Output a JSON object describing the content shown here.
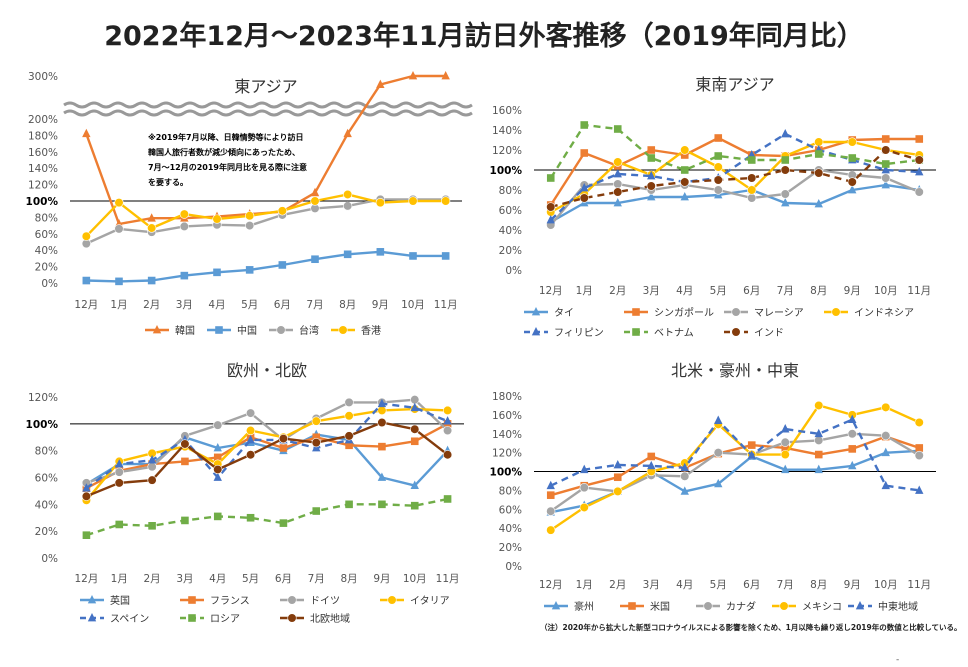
{
  "title": "2022年12月～2023年11月訪日外客推移（2019年同月比）",
  "footnote": "（注）2020年から拡大した新型コロナウイルスによる影響を除くため、1月以降も繰り返し2019年の数値と比較している。",
  "page_mark": "-",
  "chart_data": [
    {
      "id": "east-asia",
      "type": "line",
      "title": "東アジア",
      "categories": [
        "12月",
        "1月",
        "2月",
        "3月",
        "4月",
        "5月",
        "6月",
        "7月",
        "8月",
        "9月",
        "10月",
        "11月"
      ],
      "y_ticks": [
        "0%",
        "20%",
        "40%",
        "60%",
        "80%",
        "100%",
        "120%",
        "140%",
        "160%",
        "180%",
        "200%",
        "300%"
      ],
      "axis_break": "200%-300%",
      "note": [
        "※2019年7月以降、日韓情勢等により訪日",
        "韓国人旅行者数が減少傾向にあったため、",
        "7月～12月の2019年同月比を見る際に注意",
        "を要する。"
      ],
      "series": [
        {
          "name": "韓国",
          "color": "#ED7D31",
          "dash": false,
          "marker": "triangle",
          "values": [
            182,
            72,
            79,
            79,
            81,
            84,
            87,
            110,
            182,
            280,
            305,
            305
          ]
        },
        {
          "name": "中国",
          "color": "#5B9BD5",
          "dash": false,
          "marker": "square",
          "values": [
            3,
            2,
            3,
            9,
            13,
            16,
            22,
            29,
            35,
            38,
            33,
            33
          ]
        },
        {
          "name": "台湾",
          "color": "#A5A5A5",
          "dash": false,
          "marker": "circle",
          "values": [
            48,
            66,
            62,
            69,
            71,
            70,
            83,
            91,
            94,
            102,
            102,
            102
          ]
        },
        {
          "name": "香港",
          "color": "#FFC000",
          "dash": false,
          "marker": "circle",
          "values": [
            57,
            98,
            67,
            84,
            78,
            82,
            88,
            100,
            108,
            98,
            100,
            100
          ]
        }
      ]
    },
    {
      "id": "southeast-asia",
      "type": "line",
      "title": "東南アジア",
      "categories": [
        "12月",
        "1月",
        "2月",
        "3月",
        "4月",
        "5月",
        "6月",
        "7月",
        "8月",
        "9月",
        "10月",
        "11月"
      ],
      "y_ticks": [
        "0%",
        "20%",
        "40%",
        "60%",
        "80%",
        "100%",
        "120%",
        "140%",
        "160%"
      ],
      "ylim": [
        0,
        160
      ],
      "series": [
        {
          "name": "タイ",
          "color": "#5B9BD5",
          "dash": false,
          "marker": "triangle",
          "values": [
            48,
            67,
            67,
            73,
            73,
            75,
            80,
            67,
            66,
            80,
            85,
            80
          ]
        },
        {
          "name": "シンガポール",
          "color": "#ED7D31",
          "dash": false,
          "marker": "square",
          "values": [
            65,
            117,
            104,
            120,
            115,
            132,
            115,
            114,
            120,
            130,
            131,
            131
          ]
        },
        {
          "name": "マレーシア",
          "color": "#A5A5A5",
          "dash": false,
          "marker": "circle",
          "values": [
            45,
            85,
            86,
            80,
            85,
            80,
            72,
            76,
            100,
            95,
            92,
            78
          ]
        },
        {
          "name": "インドネシア",
          "color": "#FFC000",
          "dash": false,
          "marker": "circle",
          "values": [
            58,
            76,
            108,
            95,
            120,
            103,
            80,
            114,
            128,
            128,
            120,
            115
          ]
        },
        {
          "name": "フィリピン",
          "color": "#4472C4",
          "dash": true,
          "marker": "triangle",
          "values": [
            50,
            82,
            96,
            94,
            88,
            92,
            115,
            136,
            120,
            110,
            100,
            98
          ]
        },
        {
          "name": "ベトナム",
          "color": "#70AD47",
          "dash": true,
          "marker": "square",
          "values": [
            92,
            145,
            141,
            112,
            100,
            114,
            110,
            110,
            116,
            112,
            106,
            110
          ]
        },
        {
          "name": "インド",
          "color": "#843C0C",
          "dash": true,
          "marker": "circle",
          "values": [
            63,
            72,
            78,
            84,
            88,
            90,
            92,
            100,
            97,
            88,
            120,
            110
          ]
        }
      ]
    },
    {
      "id": "europe",
      "type": "line",
      "title": "欧州・北欧",
      "categories": [
        "12月",
        "1月",
        "2月",
        "3月",
        "4月",
        "5月",
        "6月",
        "7月",
        "8月",
        "9月",
        "10月",
        "11月"
      ],
      "y_ticks": [
        "0%",
        "20%",
        "40%",
        "60%",
        "80%",
        "100%",
        "120%"
      ],
      "ylim": [
        0,
        120
      ],
      "series": [
        {
          "name": "英国",
          "color": "#5B9BD5",
          "dash": false,
          "marker": "triangle",
          "values": [
            55,
            70,
            70,
            90,
            82,
            86,
            80,
            92,
            88,
            60,
            54,
            80
          ]
        },
        {
          "name": "フランス",
          "color": "#ED7D31",
          "dash": false,
          "marker": "square",
          "values": [
            52,
            65,
            70,
            72,
            75,
            90,
            82,
            90,
            84,
            83,
            87,
            100
          ]
        },
        {
          "name": "ドイツ",
          "color": "#A5A5A5",
          "dash": false,
          "marker": "circle",
          "values": [
            56,
            64,
            68,
            91,
            99,
            108,
            88,
            104,
            116,
            116,
            118,
            95
          ]
        },
        {
          "name": "イタリア",
          "color": "#FFC000",
          "dash": false,
          "marker": "circle",
          "values": [
            43,
            72,
            78,
            83,
            70,
            95,
            90,
            102,
            106,
            110,
            111,
            110
          ]
        },
        {
          "name": "スペイン",
          "color": "#4472C4",
          "dash": true,
          "marker": "triangle",
          "values": [
            52,
            70,
            73,
            88,
            60,
            88,
            88,
            82,
            88,
            115,
            112,
            102
          ]
        },
        {
          "name": "ロシア",
          "color": "#70AD47",
          "dash": true,
          "marker": "square",
          "values": [
            17,
            25,
            24,
            28,
            31,
            30,
            26,
            35,
            40,
            40,
            39,
            44
          ]
        },
        {
          "name": "北欧地域",
          "color": "#843C0C",
          "dash": false,
          "marker": "circle",
          "values": [
            46,
            56,
            58,
            85,
            66,
            77,
            89,
            86,
            91,
            101,
            96,
            77
          ]
        }
      ]
    },
    {
      "id": "americas-oceania-middleeast",
      "type": "line",
      "title": "北米・豪州・中東",
      "categories": [
        "12月",
        "1月",
        "2月",
        "3月",
        "4月",
        "5月",
        "6月",
        "7月",
        "8月",
        "9月",
        "10月",
        "11月"
      ],
      "y_ticks": [
        "0%",
        "20%",
        "40%",
        "60%",
        "80%",
        "100%",
        "120%",
        "140%",
        "160%",
        "180%"
      ],
      "ylim": [
        0,
        180
      ],
      "series": [
        {
          "name": "豪州",
          "color": "#5B9BD5",
          "dash": false,
          "marker": "triangle",
          "values": [
            57,
            64,
            79,
            100,
            79,
            87,
            116,
            102,
            102,
            106,
            120,
            122
          ]
        },
        {
          "name": "米国",
          "color": "#ED7D31",
          "dash": false,
          "marker": "square",
          "values": [
            75,
            85,
            94,
            116,
            104,
            119,
            128,
            125,
            118,
            124,
            137,
            125
          ]
        },
        {
          "name": "カナダ",
          "color": "#A5A5A5",
          "dash": false,
          "marker": "circle",
          "values": [
            58,
            83,
            79,
            96,
            95,
            120,
            118,
            131,
            133,
            140,
            138,
            117
          ]
        },
        {
          "name": "メキシコ",
          "color": "#FFC000",
          "dash": false,
          "marker": "circle",
          "values": [
            38,
            62,
            79,
            100,
            109,
            150,
            118,
            118,
            170,
            160,
            168,
            152
          ]
        },
        {
          "name": "中東地域",
          "color": "#4472C4",
          "dash": true,
          "marker": "triangle",
          "values": [
            85,
            102,
            107,
            106,
            104,
            154,
            117,
            145,
            140,
            155,
            85,
            80
          ]
        }
      ]
    }
  ]
}
